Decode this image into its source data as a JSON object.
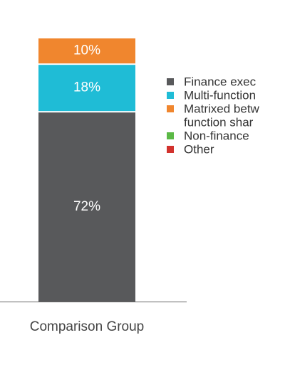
{
  "chart_data": {
    "type": "stacked-bar",
    "categories": [
      "Comparison Group"
    ],
    "series": [
      {
        "name": "Finance exec",
        "color": "#58595b",
        "values": [
          72
        ],
        "value_labels": [
          "72%"
        ]
      },
      {
        "name": "Multi-function",
        "color": "#1fbcd6",
        "values": [
          18
        ],
        "value_labels": [
          "18%"
        ]
      },
      {
        "name": [
          "Matrixed betw",
          "function shar"
        ],
        "color": "#f0862e",
        "values": [
          10
        ],
        "value_labels": [
          "10%"
        ]
      },
      {
        "name": "Non-finance",
        "color": "#5bb946",
        "values": [
          0
        ]
      },
      {
        "name": "Other",
        "color": "#d2322d",
        "values": [
          0
        ]
      }
    ],
    "legend": "right"
  }
}
